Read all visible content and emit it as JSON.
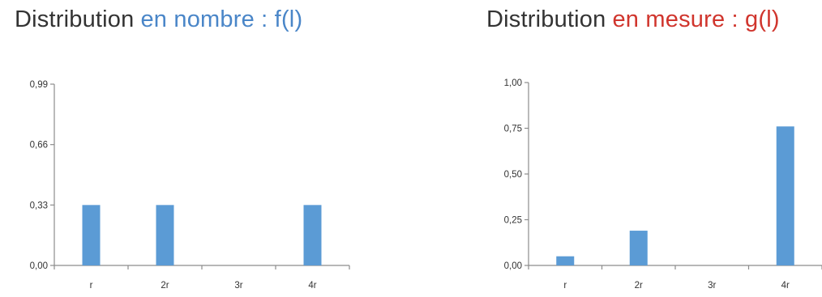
{
  "chart_data": [
    {
      "type": "bar",
      "title_prefix": "Distribution",
      "title_highlight": "en nombre : f(l)",
      "title_highlight_color": "#4a86c8",
      "categories": [
        "r",
        "2r",
        "3r",
        "4r"
      ],
      "values": [
        0.33,
        0.33,
        0,
        0.33
      ],
      "yticks": [
        "0,00",
        "0,33",
        "0,66",
        "0,99"
      ],
      "ylim": [
        0,
        0.99
      ],
      "bar_color": "#5b9bd5",
      "grid": false,
      "legend": "none"
    },
    {
      "type": "bar",
      "title_prefix": "Distribution",
      "title_highlight": "en mesure : g(l)",
      "title_highlight_color": "#d0352d",
      "categories": [
        "r",
        "2r",
        "3r",
        "4r"
      ],
      "values": [
        0.05,
        0.19,
        0,
        0.76
      ],
      "yticks": [
        "0,00",
        "0,25",
        "0,50",
        "0,75",
        "1,00"
      ],
      "ylim": [
        0,
        1.0
      ],
      "bar_color": "#5b9bd5",
      "grid": false,
      "legend": "none"
    }
  ]
}
